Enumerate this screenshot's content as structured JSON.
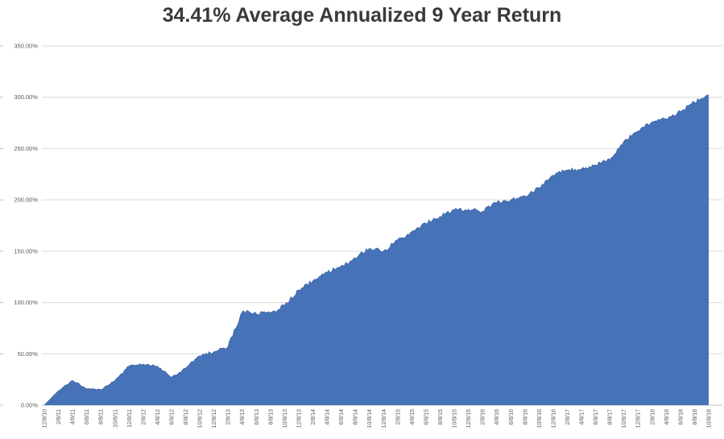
{
  "chart_data": {
    "type": "area",
    "title": "34.41% Average Annualized 9 Year Return",
    "xlabel": "",
    "ylabel": "",
    "ylim": [
      0,
      350
    ],
    "ytick_step": 50,
    "ytick_labels": [
      "0.00%",
      "50.00%",
      "100.00%",
      "150.00%",
      "200.00%",
      "250.00%",
      "300.00%",
      "350.00%"
    ],
    "grid": true,
    "legend": false,
    "categories": [
      "12/8/10",
      "2/8/11",
      "4/8/11",
      "6/8/11",
      "8/8/11",
      "10/8/11",
      "12/8/11",
      "2/8/12",
      "4/8/12",
      "6/8/12",
      "8/8/12",
      "10/8/12",
      "12/8/12",
      "2/8/13",
      "4/8/13",
      "6/8/13",
      "8/8/13",
      "10/8/13",
      "12/8/13",
      "2/8/14",
      "4/8/14",
      "6/8/14",
      "8/8/14",
      "10/8/14",
      "12/8/14",
      "2/8/15",
      "4/8/15",
      "6/8/15",
      "8/8/15",
      "10/8/15",
      "12/8/15",
      "2/8/16",
      "4/8/16",
      "6/8/16",
      "8/8/16",
      "10/8/16",
      "12/8/16",
      "2/8/17",
      "4/8/17",
      "6/8/17",
      "8/8/17",
      "10/8/17",
      "12/8/17",
      "2/8/18",
      "4/8/18",
      "6/8/18",
      "8/8/18",
      "10/8/18"
    ],
    "values": [
      0,
      14,
      24,
      16,
      15,
      24,
      38,
      40,
      38,
      27,
      36,
      48,
      52,
      57,
      91,
      89,
      90,
      97,
      112,
      121,
      129,
      136,
      143,
      153,
      150,
      161,
      169,
      177,
      184,
      190,
      191,
      189,
      197,
      200,
      204,
      212,
      224,
      229,
      230,
      234,
      239,
      257,
      267,
      276,
      279,
      286,
      295,
      302
    ],
    "units": "percent_cumulative_return",
    "colors": {
      "area_fill": "#4673b8",
      "area_stroke": "#3a62a5",
      "gridline": "#d9d9d9",
      "axis_line": "#bfbfbf",
      "tick": "#c0c0c0",
      "axis_text": "#595959",
      "title_text": "#3a3a3a",
      "background": "#ffffff"
    }
  }
}
